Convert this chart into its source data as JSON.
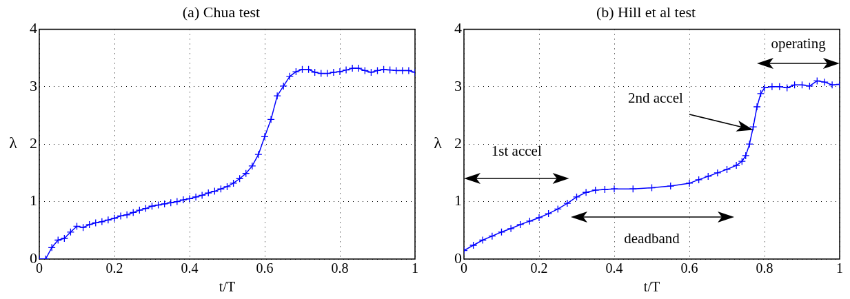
{
  "chart_data": [
    {
      "type": "line",
      "title": "(a) Chua test",
      "xlabel": "t/T",
      "ylabel": "λ",
      "xlim": [
        0,
        1
      ],
      "ylim": [
        0,
        4
      ],
      "xticks": [
        0,
        0.2,
        0.4,
        0.6,
        0.8,
        1
      ],
      "yticks": [
        0,
        1,
        2,
        3,
        4
      ],
      "grid": true,
      "legend": false,
      "marker": "cross",
      "line_style": "solid",
      "series": [
        {
          "color": "#0000ff",
          "x": [
            0,
            0.0167,
            0.0333,
            0.05,
            0.0667,
            0.0833,
            0.1,
            0.1167,
            0.1333,
            0.15,
            0.1667,
            0.1833,
            0.2,
            0.2167,
            0.2333,
            0.25,
            0.2667,
            0.2833,
            0.3,
            0.3167,
            0.3333,
            0.35,
            0.3667,
            0.3833,
            0.4,
            0.4167,
            0.4333,
            0.45,
            0.4667,
            0.4833,
            0.5,
            0.5167,
            0.5333,
            0.55,
            0.5667,
            0.5833,
            0.6,
            0.6167,
            0.6333,
            0.65,
            0.6667,
            0.6833,
            0.7,
            0.7167,
            0.7333,
            0.75,
            0.7667,
            0.7833,
            0.8,
            0.8167,
            0.8333,
            0.85,
            0.8667,
            0.8833,
            0.9,
            0.9167,
            0.9333,
            0.95,
            0.9667,
            0.9833,
            1
          ],
          "values": [
            0,
            0,
            0.2,
            0.33,
            0.36,
            0.47,
            0.57,
            0.55,
            0.6,
            0.63,
            0.65,
            0.68,
            0.71,
            0.75,
            0.77,
            0.81,
            0.85,
            0.88,
            0.92,
            0.94,
            0.96,
            0.98,
            1.0,
            1.03,
            1.05,
            1.08,
            1.11,
            1.15,
            1.18,
            1.22,
            1.26,
            1.32,
            1.4,
            1.49,
            1.62,
            1.82,
            2.13,
            2.43,
            2.84,
            3.01,
            3.18,
            3.26,
            3.3,
            3.3,
            3.25,
            3.23,
            3.23,
            3.25,
            3.26,
            3.29,
            3.32,
            3.32,
            3.28,
            3.25,
            3.28,
            3.3,
            3.29,
            3.28,
            3.28,
            3.28,
            3.25
          ]
        }
      ]
    },
    {
      "type": "line",
      "title": "(b) Hill et al test",
      "xlabel": "t/T",
      "ylabel": "λ",
      "xlim": [
        0,
        1
      ],
      "ylim": [
        0,
        4
      ],
      "xticks": [
        0,
        0.2,
        0.4,
        0.6,
        0.8,
        1
      ],
      "yticks": [
        0,
        1,
        2,
        3,
        4
      ],
      "grid": true,
      "legend": false,
      "marker": "cross",
      "line_style": "solid",
      "annotations": [
        "1st accel",
        "deadband",
        "operating",
        "2nd accel"
      ],
      "series": [
        {
          "color": "#0000ff",
          "x": [
            0,
            0.025,
            0.05,
            0.075,
            0.1,
            0.125,
            0.15,
            0.175,
            0.2,
            0.225,
            0.25,
            0.275,
            0.3,
            0.325,
            0.35,
            0.375,
            0.4,
            0.45,
            0.5,
            0.55,
            0.6,
            0.625,
            0.65,
            0.675,
            0.7,
            0.725,
            0.74,
            0.75,
            0.76,
            0.77,
            0.78,
            0.79,
            0.8,
            0.82,
            0.84,
            0.86,
            0.88,
            0.9,
            0.92,
            0.94,
            0.96,
            0.98,
            1
          ],
          "values": [
            0.15,
            0.24,
            0.33,
            0.4,
            0.47,
            0.53,
            0.6,
            0.66,
            0.72,
            0.79,
            0.87,
            0.97,
            1.08,
            1.16,
            1.2,
            1.21,
            1.22,
            1.22,
            1.24,
            1.27,
            1.32,
            1.38,
            1.44,
            1.5,
            1.56,
            1.63,
            1.7,
            1.8,
            2.0,
            2.3,
            2.65,
            2.88,
            2.98,
            3.0,
            3.0,
            2.98,
            3.03,
            3.03,
            3.01,
            3.1,
            3.08,
            3.03,
            3.04
          ]
        }
      ]
    }
  ]
}
